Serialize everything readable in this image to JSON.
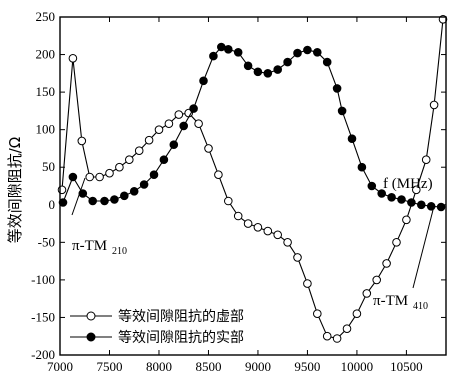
{
  "chart_data": {
    "type": "line",
    "title": "",
    "xlabel": "",
    "ylabel": "等效间隙阻抗/Ω",
    "xlim": [
      7000,
      10900
    ],
    "ylim": [
      -200,
      250
    ],
    "xticks": [
      7000,
      7500,
      8000,
      8500,
      9000,
      9500,
      10000,
      10500
    ],
    "yticks": [
      -200,
      -150,
      -100,
      -50,
      0,
      50,
      100,
      150,
      200,
      250
    ],
    "grid": false,
    "legend_position": "bottom-left",
    "annotations": {
      "freq_label": "f (MHz)",
      "mode1_main": "π-TM",
      "mode1_sub": "210",
      "mode2_main": "π-TM",
      "mode2_sub": "410"
    },
    "series": [
      {
        "name": "等效间隙阻抗的虚部",
        "marker": "open-circle",
        "points": [
          [
            7020,
            20
          ],
          [
            7130,
            195
          ],
          [
            7220,
            85
          ],
          [
            7300,
            37
          ],
          [
            7400,
            37
          ],
          [
            7500,
            42
          ],
          [
            7600,
            50
          ],
          [
            7700,
            60
          ],
          [
            7800,
            72
          ],
          [
            7900,
            86
          ],
          [
            8000,
            100
          ],
          [
            8100,
            108
          ],
          [
            8200,
            120
          ],
          [
            8300,
            122
          ],
          [
            8400,
            108
          ],
          [
            8500,
            75
          ],
          [
            8600,
            40
          ],
          [
            8700,
            5
          ],
          [
            8800,
            -15
          ],
          [
            8900,
            -25
          ],
          [
            9000,
            -30
          ],
          [
            9100,
            -35
          ],
          [
            9200,
            -40
          ],
          [
            9300,
            -50
          ],
          [
            9400,
            -70
          ],
          [
            9500,
            -105
          ],
          [
            9600,
            -145
          ],
          [
            9700,
            -175
          ],
          [
            9800,
            -178
          ],
          [
            9900,
            -165
          ],
          [
            10000,
            -145
          ],
          [
            10100,
            -118
          ],
          [
            10200,
            -100
          ],
          [
            10300,
            -78
          ],
          [
            10400,
            -50
          ],
          [
            10500,
            -20
          ],
          [
            10600,
            20
          ],
          [
            10700,
            60
          ],
          [
            10780,
            133
          ],
          [
            10870,
            247
          ]
        ]
      },
      {
        "name": "等效间隙阻抗的实部",
        "marker": "filled-circle",
        "points": [
          [
            7030,
            3
          ],
          [
            7130,
            37
          ],
          [
            7230,
            15
          ],
          [
            7330,
            5
          ],
          [
            7450,
            5
          ],
          [
            7550,
            7
          ],
          [
            7650,
            12
          ],
          [
            7750,
            18
          ],
          [
            7850,
            27
          ],
          [
            7950,
            40
          ],
          [
            8050,
            60
          ],
          [
            8150,
            80
          ],
          [
            8250,
            105
          ],
          [
            8350,
            128
          ],
          [
            8450,
            165
          ],
          [
            8550,
            198
          ],
          [
            8630,
            210
          ],
          [
            8700,
            207
          ],
          [
            8800,
            203
          ],
          [
            8900,
            185
          ],
          [
            9000,
            177
          ],
          [
            9100,
            175
          ],
          [
            9200,
            180
          ],
          [
            9300,
            190
          ],
          [
            9400,
            202
          ],
          [
            9500,
            206
          ],
          [
            9600,
            203
          ],
          [
            9700,
            190
          ],
          [
            9800,
            155
          ],
          [
            9850,
            125
          ],
          [
            9950,
            88
          ],
          [
            10050,
            50
          ],
          [
            10150,
            25
          ],
          [
            10250,
            15
          ],
          [
            10350,
            10
          ],
          [
            10450,
            7
          ],
          [
            10550,
            3
          ],
          [
            10650,
            0
          ],
          [
            10750,
            -2
          ],
          [
            10850,
            -3
          ]
        ]
      }
    ]
  }
}
